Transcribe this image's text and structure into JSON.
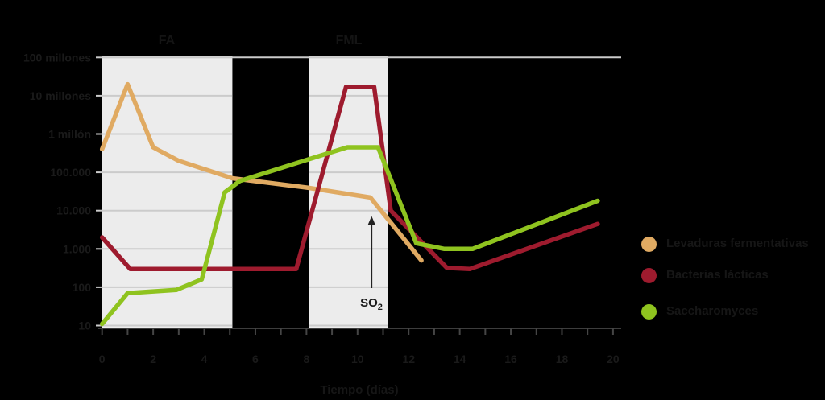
{
  "colors": {
    "background": "#000000",
    "band_fill": "#ececec",
    "gridline": "#cbcbcb",
    "axis": "#3d3d3d",
    "tick": "#454545",
    "text": "#1a1a1a",
    "arrow": "#222222"
  },
  "chart_data": {
    "type": "line",
    "title": "",
    "xlabel": "Tiempo (días)",
    "ylabel": "",
    "y_scale": "log",
    "xlim": [
      0,
      20
    ],
    "ylim": [
      10,
      100000000
    ],
    "grid": "inside-bands",
    "legend_position": "right",
    "x_ticks": [
      0,
      2,
      4,
      6,
      8,
      10,
      12,
      14,
      16,
      18,
      20
    ],
    "x_minor_tick_step": 1,
    "y_ticks": [
      {
        "value": 10,
        "label": "10"
      },
      {
        "value": 100,
        "label": "100"
      },
      {
        "value": 1000,
        "label": "1.000"
      },
      {
        "value": 10000,
        "label": "10.000"
      },
      {
        "value": 100000,
        "label": "100.000"
      },
      {
        "value": 1000000,
        "label": "1 millón"
      },
      {
        "value": 10000000,
        "label": "10 millones"
      },
      {
        "value": 100000000,
        "label": "100 millones"
      }
    ],
    "bands": [
      {
        "label": "FA",
        "from_day": 0,
        "to_day": 5.1
      },
      {
        "label": "FML",
        "from_day": 8.1,
        "to_day": 11.2
      }
    ],
    "annotation": {
      "text": "SO",
      "subscript": "2",
      "day": 10.55
    },
    "series": [
      {
        "name": "Levaduras fermentativas",
        "color": "#e0aa62",
        "points": [
          [
            0,
            400000
          ],
          [
            1,
            20000000
          ],
          [
            2,
            450000
          ],
          [
            3,
            200000
          ],
          [
            5.1,
            70000
          ],
          [
            8,
            40000
          ],
          [
            10.5,
            22000
          ],
          [
            12.5,
            500
          ]
        ]
      },
      {
        "name": "Bacterias lácticas",
        "color": "#9e1b2e",
        "points": [
          [
            0,
            2000
          ],
          [
            1.1,
            300
          ],
          [
            7.6,
            300
          ],
          [
            9.55,
            17000000
          ],
          [
            10.65,
            17000000
          ],
          [
            11.3,
            10000
          ],
          [
            13.5,
            320
          ],
          [
            14.4,
            300
          ],
          [
            19.4,
            4500
          ]
        ]
      },
      {
        "name": "Saccharomyces",
        "color": "#8fc31f",
        "points": [
          [
            0,
            11
          ],
          [
            1,
            70
          ],
          [
            2.9,
            85
          ],
          [
            3.9,
            160
          ],
          [
            4.8,
            30000
          ],
          [
            5.4,
            60000
          ],
          [
            8.1,
            220000
          ],
          [
            9.6,
            450000
          ],
          [
            10.8,
            450000
          ],
          [
            12.3,
            1400
          ],
          [
            13.4,
            1000
          ],
          [
            14.5,
            1000
          ],
          [
            19.4,
            18000
          ]
        ]
      }
    ]
  }
}
